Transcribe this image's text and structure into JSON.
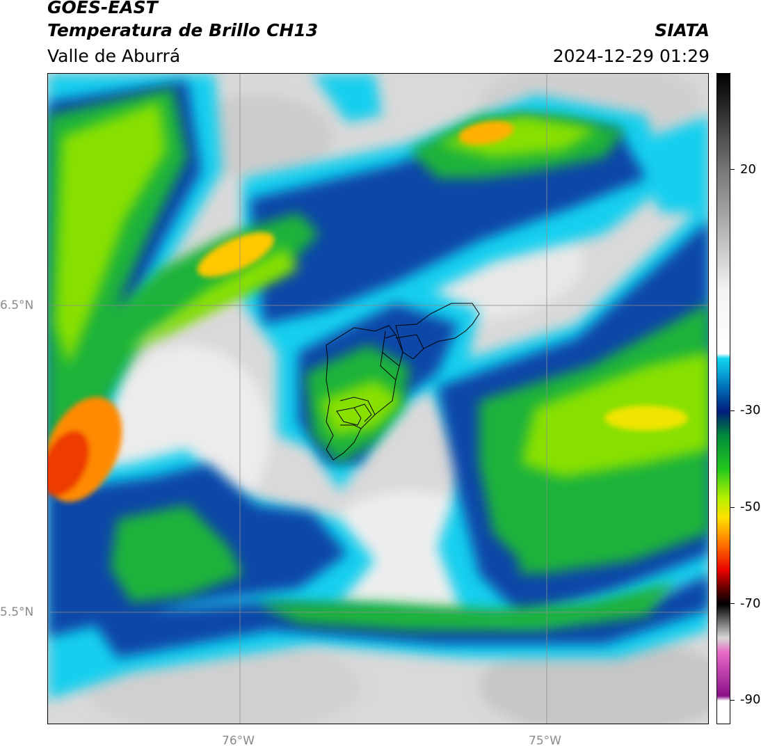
{
  "header": {
    "satellite": "GOES-EAST",
    "product": "Temperatura de Brillo CH13",
    "region": "Valle de Aburrá",
    "agency": "SIATA",
    "datetime": "2024-12-29 01:29"
  },
  "map": {
    "lon_labels": [
      "76°W",
      "75°W"
    ],
    "lat_labels": [
      "6.5°N",
      "5.5°N"
    ],
    "gridline_color": "#8c8c8c"
  },
  "colorbar": {
    "tick_labels": [
      "20",
      "-30",
      "-50",
      "-70",
      "-90"
    ],
    "tick_values": [
      20,
      -30,
      -50,
      -70,
      -90
    ],
    "range": [
      40,
      -95
    ],
    "stops": [
      {
        "v": 40,
        "c": "#000000"
      },
      {
        "v": 20,
        "c": "#777777"
      },
      {
        "v": -5,
        "c": "#f4f4f4"
      },
      {
        "v": -18,
        "c": "#ffffff"
      },
      {
        "v": -19,
        "c": "#12d6f0"
      },
      {
        "v": -25,
        "c": "#0070b8"
      },
      {
        "v": -30,
        "c": "#001e7a"
      },
      {
        "v": -35,
        "c": "#008a3a"
      },
      {
        "v": -42,
        "c": "#22c81e"
      },
      {
        "v": -48,
        "c": "#b8f000"
      },
      {
        "v": -52,
        "c": "#ffe000"
      },
      {
        "v": -57,
        "c": "#ff7e00"
      },
      {
        "v": -63,
        "c": "#e80000"
      },
      {
        "v": -68,
        "c": "#3a0000"
      },
      {
        "v": -70,
        "c": "#000000"
      },
      {
        "v": -77,
        "c": "#d8d8d8"
      },
      {
        "v": -80,
        "c": "#e868c8"
      },
      {
        "v": -89,
        "c": "#8a1088"
      },
      {
        "v": -90,
        "c": "#ffffff"
      }
    ]
  }
}
